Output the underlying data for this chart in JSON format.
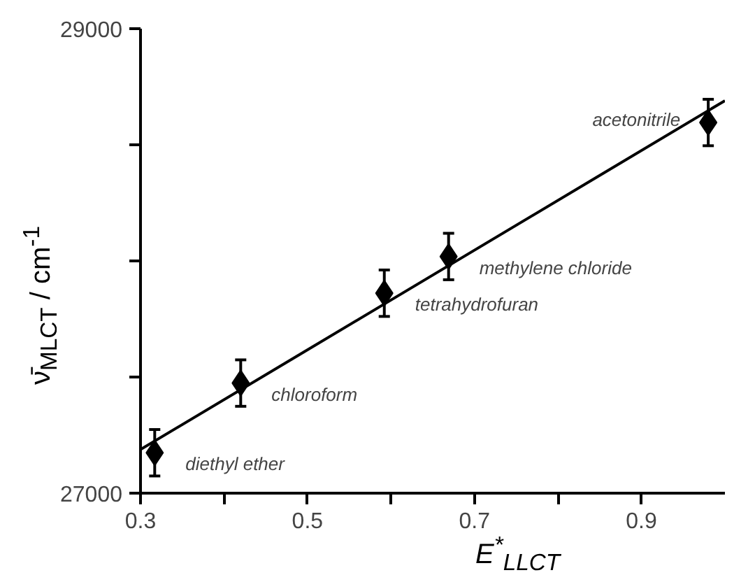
{
  "chart_data": {
    "type": "scatter",
    "xlabel": "E$^{*}$$_{LLCT}$",
    "ylabel": "ν̄$_{MLCT}$ / cm$^{-1}$",
    "xlim": [
      0.3,
      1.0
    ],
    "ylim": [
      27000,
      29000
    ],
    "xticks": [
      0.3,
      {
        "value": 0.4,
        "label": null
      },
      0.5,
      {
        "value": 0.6,
        "label": null
      },
      0.7,
      {
        "value": 0.8,
        "label": null
      },
      0.9
    ],
    "yticks": [
      27000,
      {
        "value": 27500,
        "label": null
      },
      {
        "value": 28000,
        "label": null
      },
      {
        "value": 28500,
        "label": null
      },
      29000
    ],
    "grid": false,
    "series": [
      {
        "marker": "diamond",
        "color": "#000000",
        "x": [
          0.317,
          0.42,
          0.592,
          0.669,
          0.98
        ],
        "values": [
          27174,
          27474,
          27861,
          28019,
          28596
        ],
        "errors": [
          100,
          100,
          100,
          100,
          100
        ]
      },
      {
        "type": "line",
        "color": "#000000",
        "x": [
          0.3,
          1.0
        ],
        "values": [
          27188,
          28690
        ]
      }
    ],
    "annotations": [
      {
        "text": "diethyl ether",
        "x": 0.317,
        "y": 27174
      },
      {
        "text": "chloroform",
        "x": 0.42,
        "y": 27474
      },
      {
        "text": "tetrahydrofuran",
        "x": 0.592,
        "y": 27861
      },
      {
        "text": "methylene chloride",
        "x": 0.669,
        "y": 28019
      },
      {
        "text": "acetonitrile",
        "x": 0.98,
        "y": 28596
      }
    ]
  }
}
